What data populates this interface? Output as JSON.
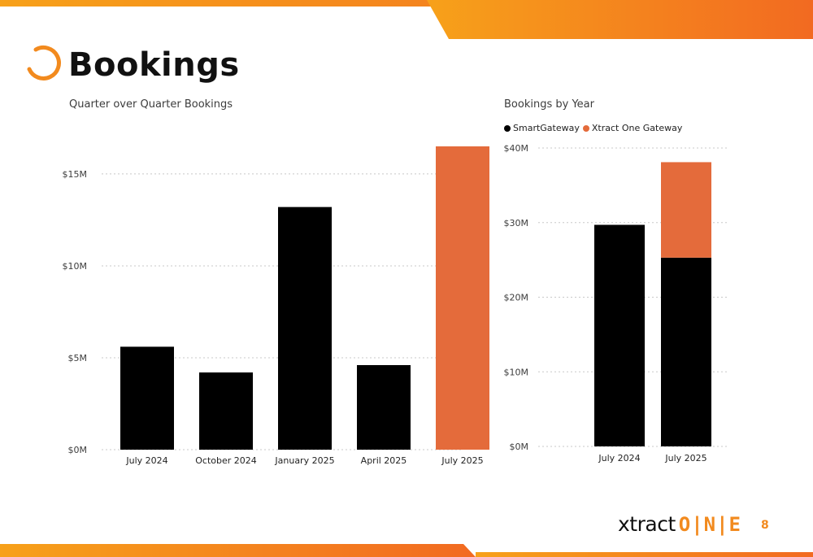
{
  "page": {
    "title": "Bookings",
    "brand_name": "xtract",
    "brand_suffix": "O|N|E",
    "page_number": "8",
    "accent_color": "#f28a1e"
  },
  "chart_data": [
    {
      "type": "bar",
      "title": "Quarter over Quarter Bookings",
      "categories": [
        "July 2024",
        "October 2024",
        "January 2025",
        "April 2025",
        "July 2025"
      ],
      "values": [
        5.6,
        4.2,
        13.2,
        4.6,
        16.5
      ],
      "bar_colors": [
        "#000000",
        "#000000",
        "#000000",
        "#000000",
        "#e46b3b"
      ],
      "y_ticks": [
        0,
        5,
        10,
        15
      ],
      "y_tick_labels": [
        "$0M",
        "$5M",
        "$10M",
        "$15M"
      ],
      "ylim": [
        0,
        16.5
      ],
      "xlabel": "",
      "ylabel": "",
      "grid": true
    },
    {
      "type": "bar",
      "stacked": true,
      "title": "Bookings by Year",
      "categories": [
        "July 2024",
        "July 2025"
      ],
      "series": [
        {
          "name": "SmartGateway",
          "color": "#000000",
          "values": [
            29.7,
            25.3
          ]
        },
        {
          "name": "Xtract One Gateway",
          "color": "#e46b3b",
          "values": [
            0,
            12.8
          ]
        }
      ],
      "y_ticks": [
        0,
        10,
        20,
        30,
        40
      ],
      "y_tick_labels": [
        "$0M",
        "$10M",
        "$20M",
        "$30M",
        "$40M"
      ],
      "ylim": [
        0,
        40
      ],
      "legend": "top-left",
      "xlabel": "",
      "ylabel": "",
      "grid": true
    }
  ]
}
